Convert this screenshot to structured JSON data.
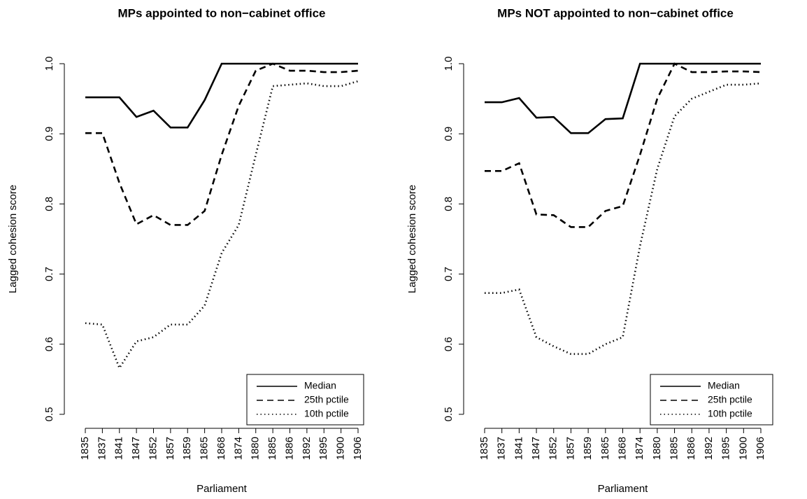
{
  "chart_data": [
    {
      "type": "line",
      "title": "MPs appointed to non−cabinet office",
      "x_label": "Parliament",
      "y_label": "Lagged cohesion score",
      "categories": [
        "1835",
        "1837",
        "1841",
        "1847",
        "1852",
        "1857",
        "1859",
        "1865",
        "1868",
        "1874",
        "1880",
        "1885",
        "1886",
        "1892",
        "1895",
        "1900",
        "1906"
      ],
      "series": [
        {
          "name": "Median",
          "color": "#000000",
          "line_style": "solid",
          "values": [
            0.952,
            0.952,
            0.952,
            0.924,
            0.933,
            0.909,
            0.909,
            0.948,
            1.0,
            1.0,
            1.0,
            1.0,
            1.0,
            1.0,
            1.0,
            1.0,
            1.0
          ]
        },
        {
          "name": "25th pctile",
          "color": "#000000",
          "line_style": "dashed",
          "values": [
            0.901,
            0.901,
            0.83,
            0.771,
            0.784,
            0.77,
            0.77,
            0.79,
            0.87,
            0.94,
            0.99,
            1.0,
            0.99,
            0.99,
            0.988,
            0.988,
            0.99
          ]
        },
        {
          "name": "10th pctile",
          "color": "#000000",
          "line_style": "dotted",
          "values": [
            0.63,
            0.628,
            0.566,
            0.604,
            0.61,
            0.628,
            0.628,
            0.655,
            0.73,
            0.77,
            0.87,
            0.968,
            0.97,
            0.972,
            0.968,
            0.968,
            0.975
          ]
        }
      ],
      "ylim": [
        0.5,
        1.0
      ],
      "yticks": [
        0.5,
        0.6,
        0.7,
        0.8,
        0.9,
        {
          "value": 1,
          "label": "1.0"
        }
      ],
      "legend": "bottom-right"
    },
    {
      "type": "line",
      "title": "MPs NOT appointed to non−cabinet office",
      "x_label": "Parliament",
      "y_label": "Lagged cohesion score",
      "categories": [
        "1835",
        "1837",
        "1841",
        "1847",
        "1852",
        "1857",
        "1859",
        "1865",
        "1868",
        "1874",
        "1880",
        "1885",
        "1886",
        "1892",
        "1895",
        "1900",
        "1906"
      ],
      "series": [
        {
          "name": "Median",
          "color": "#000000",
          "line_style": "solid",
          "values": [
            0.945,
            0.945,
            0.951,
            0.923,
            0.924,
            0.901,
            0.901,
            0.921,
            0.922,
            1.0,
            1.0,
            1.0,
            1.0,
            1.0,
            1.0,
            1.0,
            1.0
          ]
        },
        {
          "name": "25th pctile",
          "color": "#000000",
          "line_style": "dashed",
          "values": [
            0.847,
            0.847,
            0.858,
            0.785,
            0.784,
            0.767,
            0.767,
            0.79,
            0.797,
            0.87,
            0.95,
            1.0,
            0.988,
            0.988,
            0.989,
            0.989,
            0.988
          ]
        },
        {
          "name": "10th pctile",
          "color": "#000000",
          "line_style": "dotted",
          "values": [
            0.673,
            0.673,
            0.678,
            0.61,
            0.597,
            0.586,
            0.586,
            0.6,
            0.61,
            0.74,
            0.85,
            0.925,
            0.95,
            0.96,
            0.97,
            0.97,
            0.972
          ]
        }
      ],
      "ylim": [
        0.5,
        1.0
      ],
      "yticks": [
        0.5,
        0.6,
        0.7,
        0.8,
        0.9,
        {
          "value": 1,
          "label": "1.0"
        }
      ],
      "legend": "bottom-right"
    }
  ]
}
